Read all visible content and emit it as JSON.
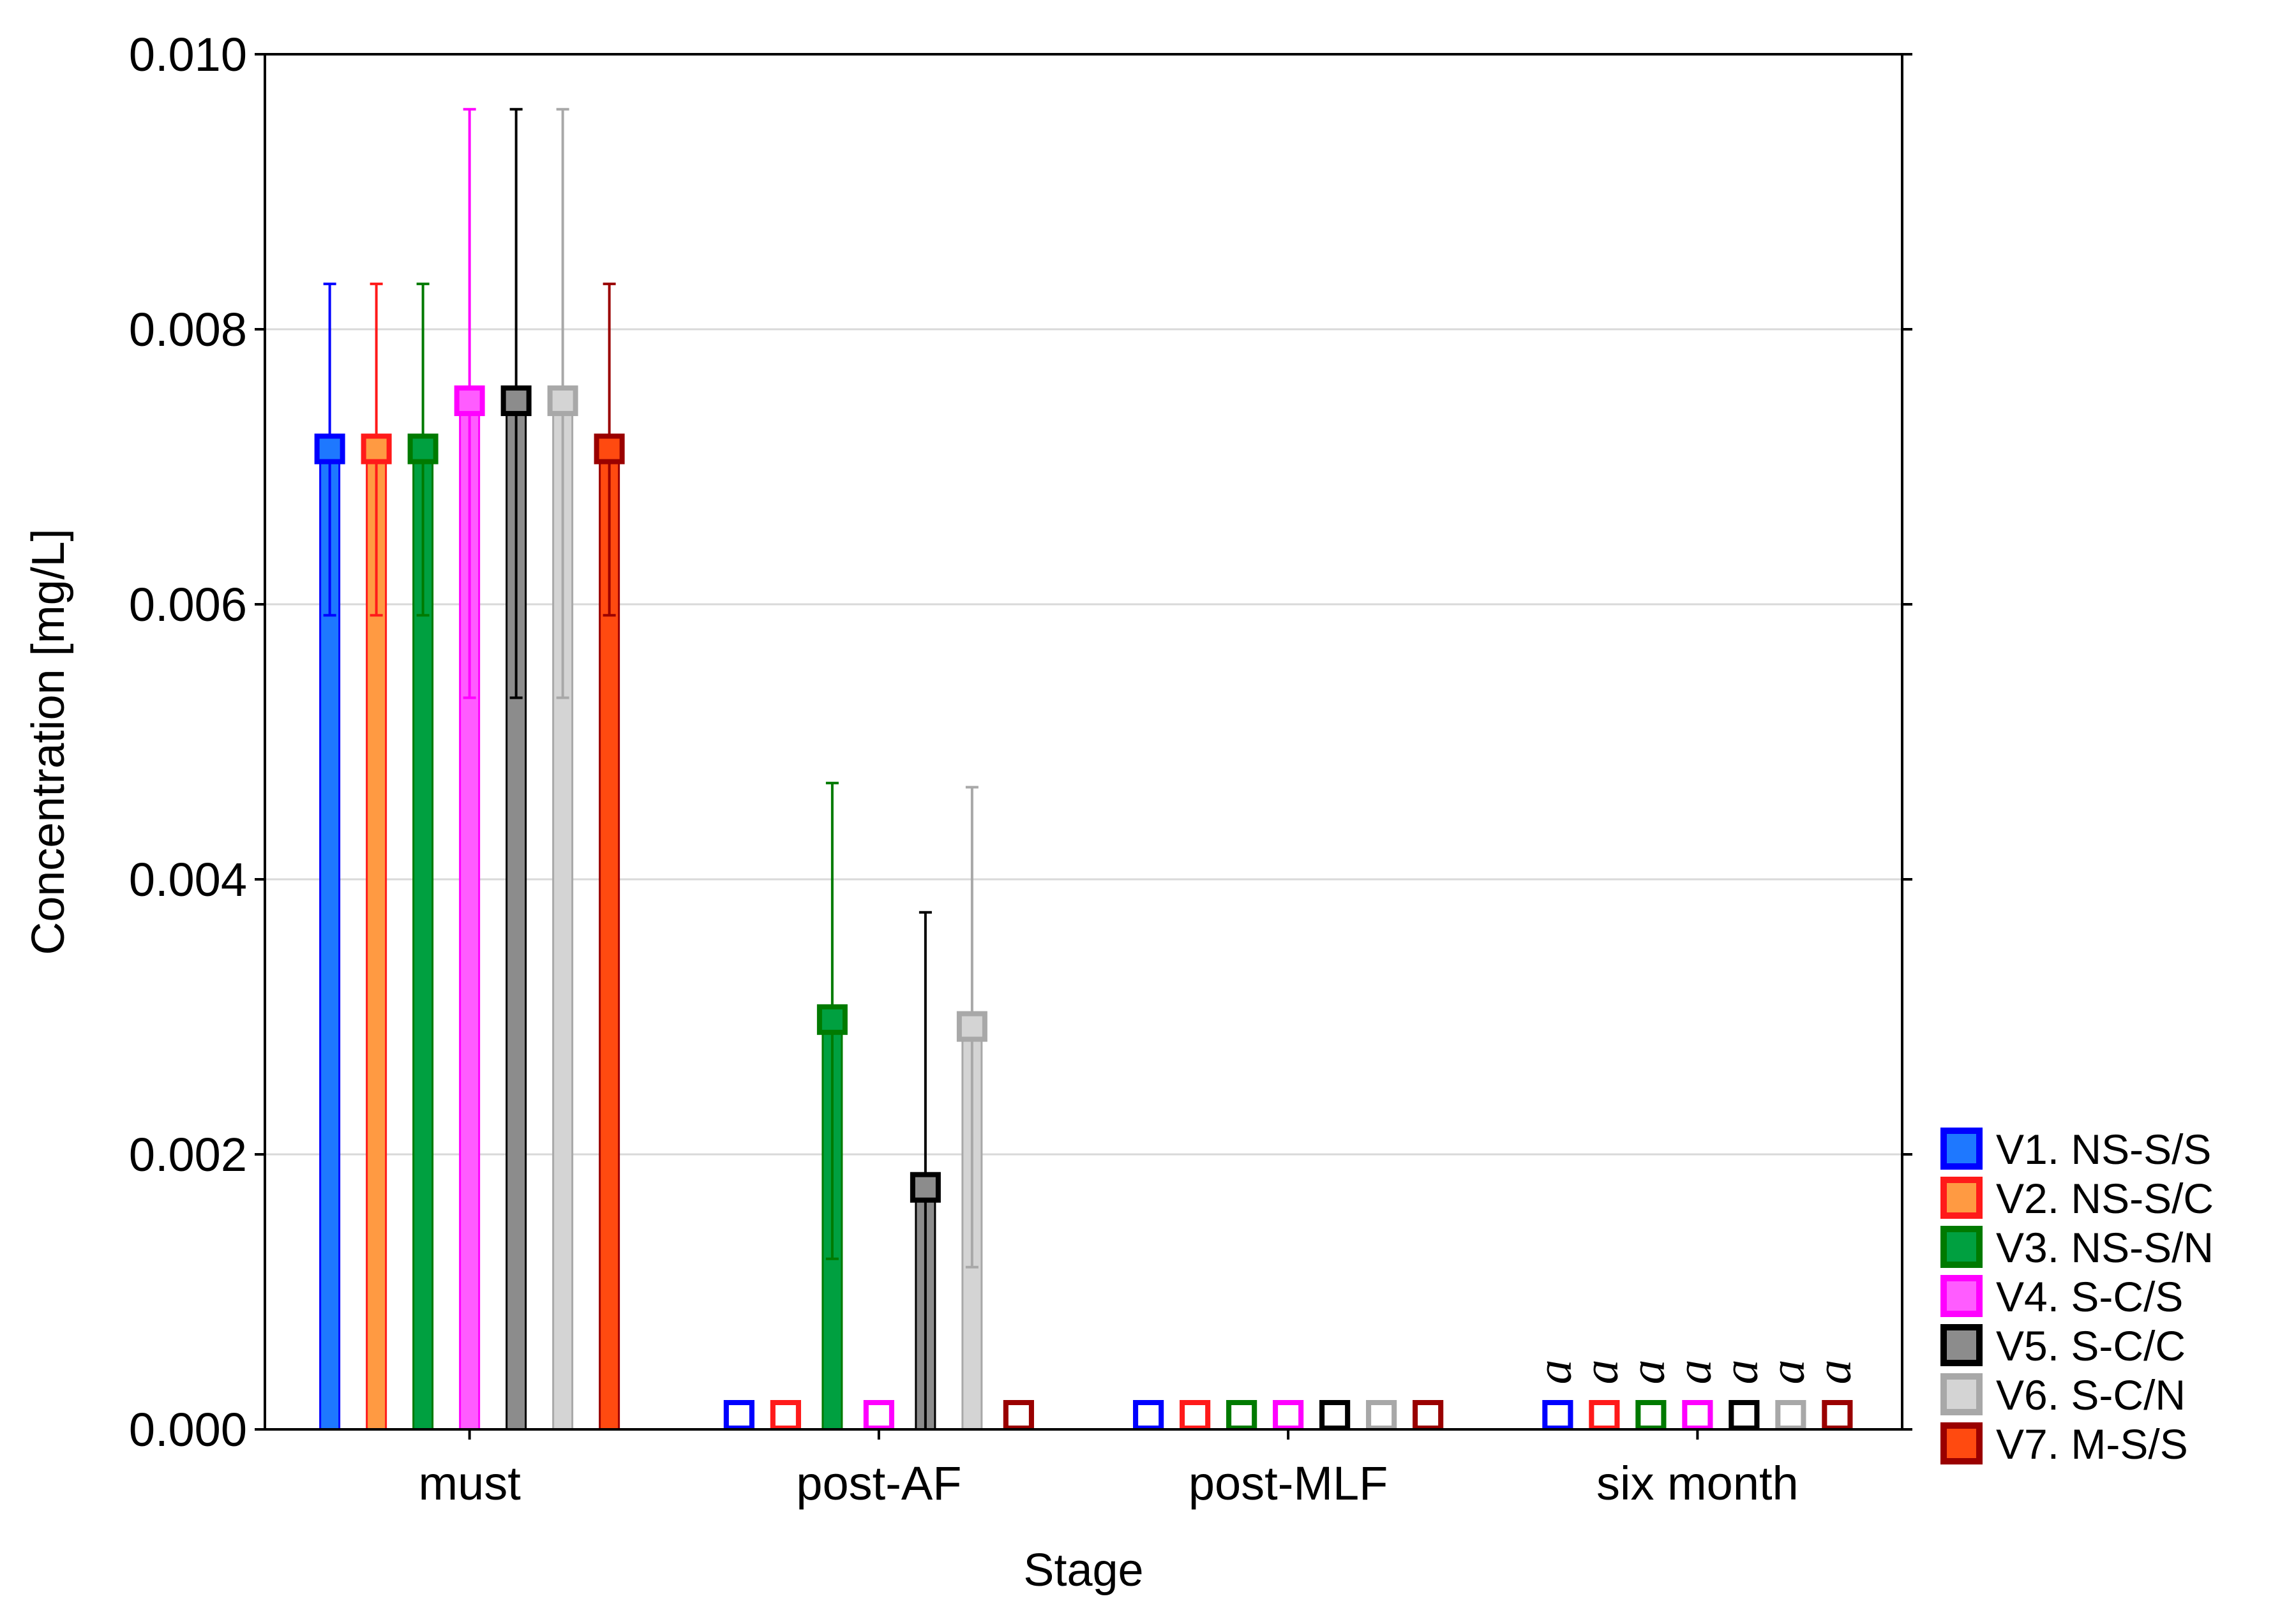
{
  "chart_data": {
    "type": "bar",
    "title": "",
    "xlabel": "Stage",
    "ylabel": "Concentration [mg/L]",
    "ylim": [
      0,
      0.01
    ],
    "yticks": [
      "0.000",
      "0.002",
      "0.004",
      "0.006",
      "0.008",
      "0.010"
    ],
    "grid": true,
    "legend_position": "right-bottom",
    "categories": [
      "must",
      "post-AF",
      "post-MLF",
      "six month"
    ],
    "series": [
      {
        "name": "V1. NS-S/S",
        "line_color": "#0000ff",
        "fill_color": "#1e78ff",
        "values": [
          0.00713,
          0,
          0,
          0
        ],
        "err_low": [
          0.00592,
          null,
          null,
          null
        ],
        "err_high": [
          0.00833,
          null,
          null,
          null
        ]
      },
      {
        "name": "V2. NS-S/C",
        "line_color": "#ff1a1a",
        "fill_color": "#ff9a42",
        "values": [
          0.00713,
          0,
          0,
          0
        ],
        "err_low": [
          0.00592,
          null,
          null,
          null
        ],
        "err_high": [
          0.00833,
          null,
          null,
          null
        ]
      },
      {
        "name": "V3. NS-S/N",
        "line_color": "#007a00",
        "fill_color": "#00a040",
        "values": [
          0.00713,
          0.00298,
          0,
          0
        ],
        "err_low": [
          0.00592,
          0.00124,
          null,
          null
        ],
        "err_high": [
          0.00833,
          0.0047,
          null,
          null
        ]
      },
      {
        "name": "V4. S-C/S",
        "line_color": "#ff00ff",
        "fill_color": "#ff5cff",
        "values": [
          0.00748,
          0,
          0,
          0
        ],
        "err_low": [
          0.00532,
          null,
          null,
          null
        ],
        "err_high": [
          0.0096,
          null,
          null,
          null
        ]
      },
      {
        "name": "V5. S-C/C",
        "line_color": "#000000",
        "fill_color": "#8c8c8c",
        "values": [
          0.00748,
          0.00176,
          0,
          0
        ],
        "err_low": [
          0.00532,
          0.0,
          null,
          null
        ],
        "err_high": [
          0.0096,
          0.00376,
          null,
          null
        ]
      },
      {
        "name": "V6. S-C/N",
        "line_color": "#a8a8a8",
        "fill_color": "#d4d4d4",
        "values": [
          0.00748,
          0.00293,
          0,
          0
        ],
        "err_low": [
          0.00532,
          0.00118,
          null,
          null
        ],
        "err_high": [
          0.0096,
          0.00467,
          null,
          null
        ]
      },
      {
        "name": "V7. M-S/S",
        "line_color": "#9a0000",
        "fill_color": "#ff4a10",
        "values": [
          0.00713,
          0,
          0,
          0
        ],
        "err_low": [
          0.00592,
          null,
          null,
          null
        ],
        "err_high": [
          0.00833,
          null,
          null,
          null
        ]
      }
    ],
    "annotations": [
      {
        "category": "six month",
        "series": "V1. NS-S/S",
        "text": "a"
      },
      {
        "category": "six month",
        "series": "V2. NS-S/C",
        "text": "a"
      },
      {
        "category": "six month",
        "series": "V3. NS-S/N",
        "text": "a"
      },
      {
        "category": "six month",
        "series": "V4. S-C/S",
        "text": "a"
      },
      {
        "category": "six month",
        "series": "V5. S-C/C",
        "text": "a"
      },
      {
        "category": "six month",
        "series": "V6. S-C/N",
        "text": "a"
      },
      {
        "category": "six month",
        "series": "V7. M-S/S",
        "text": "a"
      }
    ]
  }
}
